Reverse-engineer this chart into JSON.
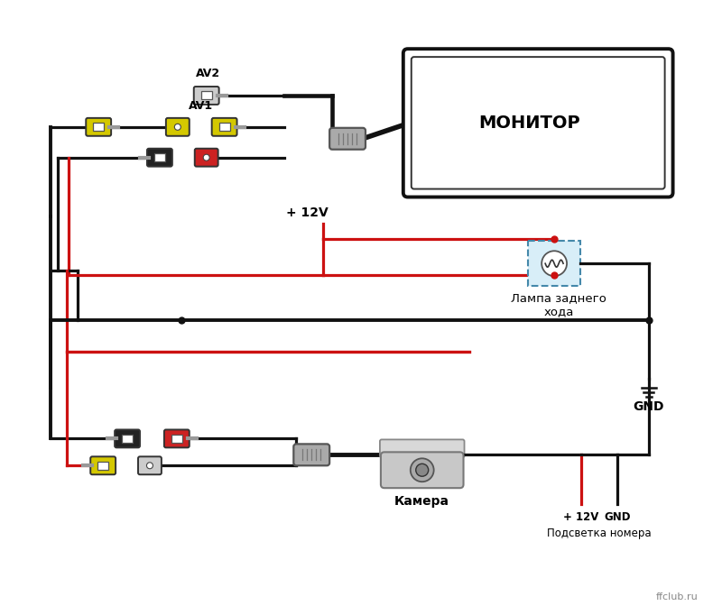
{
  "bg_color": "#ffffff",
  "fig_width": 8.0,
  "fig_height": 6.82,
  "monitor_label": "МОНИТОР",
  "lamp_label": "Лампа заднего\nхода",
  "gnd_label": "GND",
  "camera_label": "Камера",
  "plus12v_label": "+ 12V",
  "license_label": "Подсветка номера",
  "av1_label": "AV1",
  "av2_label": "AV2",
  "ffclub_label": "ffclub.ru",
  "wire_black": "#111111",
  "wire_red": "#cc1111",
  "yellow": "#d4c800",
  "gray_conn": "#aaaaaa",
  "lamp_box_color": "#d8eef8",
  "lamp_border": "#4488aa"
}
